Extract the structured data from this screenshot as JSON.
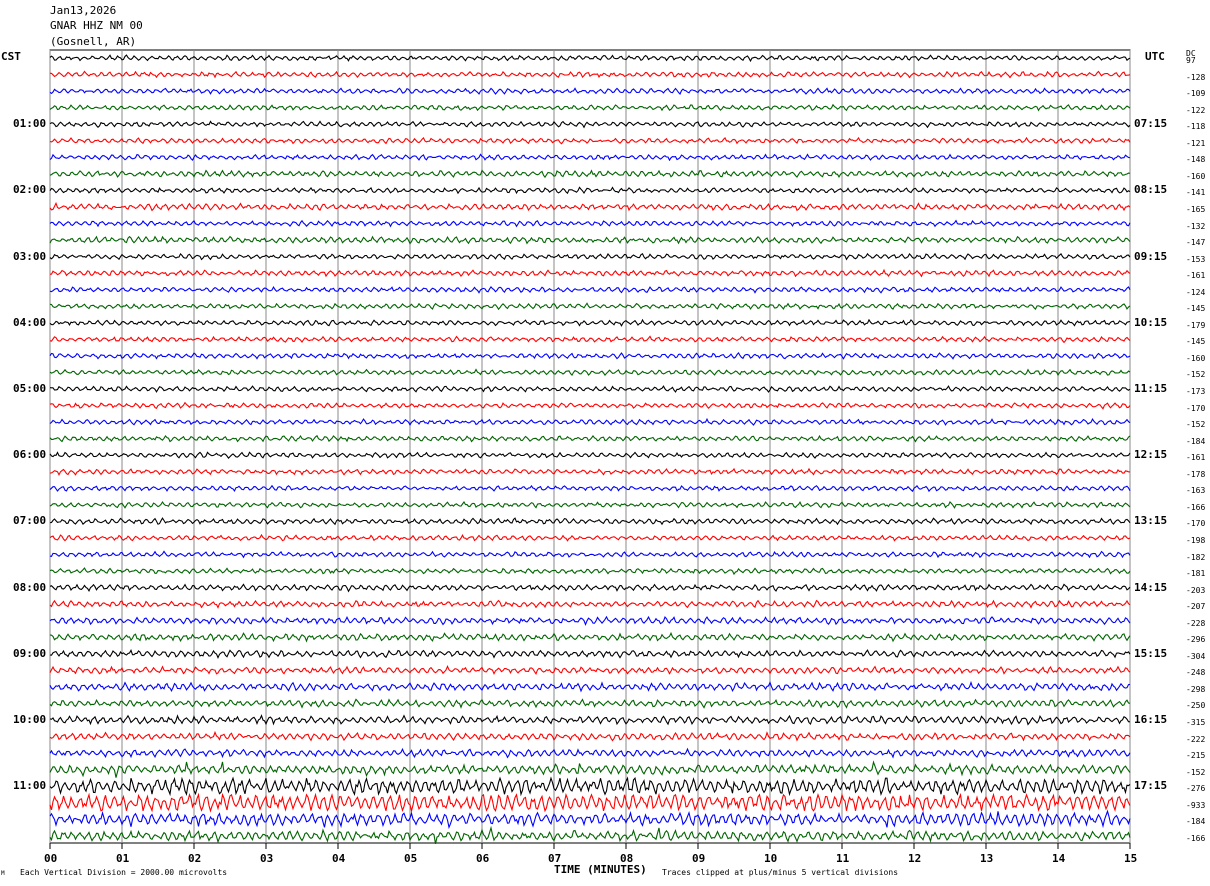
{
  "header": {
    "date": "Jan13,2026",
    "station": "GNAR HHZ NM 00",
    "location": "(Gosnell, AR)"
  },
  "left_zone": "CST",
  "right_zone": "UTC",
  "dc_label": "DC",
  "footer": {
    "scale_note": "Each Vertical Division = 2000.00 microvolts",
    "clip_note": "Traces clipped at plus/minus 5 vertical divisions",
    "small_mark": "M"
  },
  "chart_data": {
    "type": "line",
    "title": "",
    "xlabel": "TIME (MINUTES)",
    "ylabel": "",
    "xlim": [
      0,
      15
    ],
    "x_ticks": [
      "00",
      "01",
      "02",
      "03",
      "04",
      "05",
      "06",
      "07",
      "08",
      "09",
      "10",
      "11",
      "12",
      "13",
      "14",
      "15"
    ],
    "trace_minutes": 15,
    "trace_colors": [
      "#000000",
      "#ff0000",
      "#0000ff",
      "#006400"
    ],
    "left_hour_labels": [
      "01:00",
      "02:00",
      "03:00",
      "04:00",
      "05:00",
      "06:00",
      "07:00",
      "08:00",
      "09:00",
      "10:00",
      "11:00"
    ],
    "right_hour_labels": [
      "07:15",
      "08:15",
      "09:15",
      "10:15",
      "11:15",
      "12:15",
      "13:15",
      "14:15",
      "15:15",
      "16:15",
      "17:15"
    ],
    "dc_offsets": [
      97,
      -128,
      -109,
      -122,
      -118,
      -121,
      -148,
      -160,
      -141,
      -165,
      -132,
      -147,
      -153,
      -161,
      -124,
      -145,
      -179,
      -145,
      -160,
      -152,
      -173,
      -170,
      -152,
      -184,
      -161,
      -178,
      -163,
      -166,
      -170,
      -198,
      -182,
      -181,
      -203,
      -207,
      -228,
      -296,
      -304,
      -248,
      -298,
      -250,
      -315,
      -222,
      -215,
      -152,
      -276,
      -933,
      -184,
      -166
    ],
    "trace_activity": [
      1,
      1,
      1,
      1,
      1,
      1,
      1,
      1.2,
      1,
      1.2,
      1,
      1.2,
      1,
      1.1,
      1,
      1,
      1,
      1,
      1,
      1,
      1,
      1,
      1,
      1,
      1,
      1,
      1,
      1,
      1.1,
      1,
      1,
      1,
      1.2,
      1.2,
      1.3,
      1.3,
      1.3,
      1.3,
      1.5,
      1.4,
      1.5,
      1.4,
      1.4,
      1.8,
      3.0,
      3.5,
      2.5,
      2.0
    ]
  }
}
